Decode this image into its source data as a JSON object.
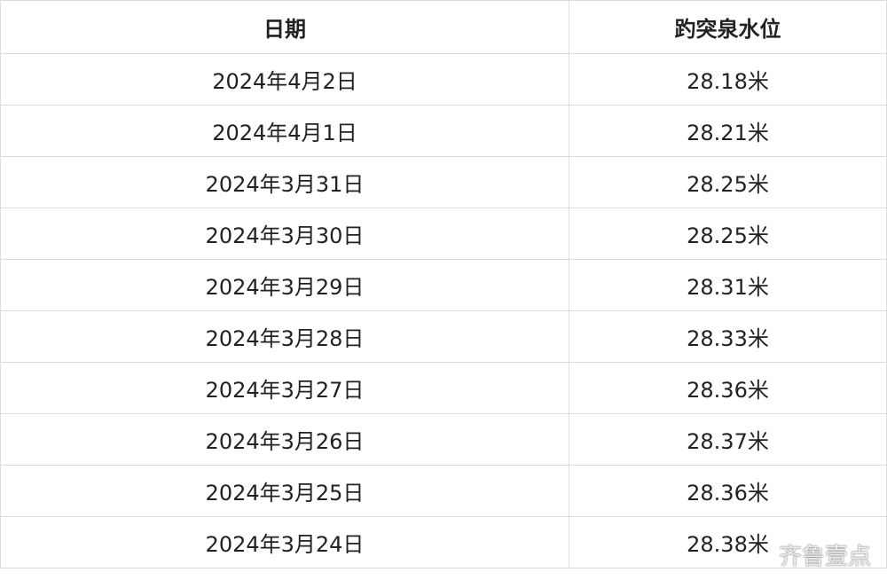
{
  "table": {
    "header": [
      "日期",
      "趵突泉水位"
    ],
    "rows": [
      [
        "2024年4月2日",
        "28.18米"
      ],
      [
        "2024年4月1日",
        "28.21米"
      ],
      [
        "2024年3月31日",
        "28.25米"
      ],
      [
        "2024年3月30日",
        "28.25米"
      ],
      [
        "2024年3月29日",
        "28.31米"
      ],
      [
        "2024年3月28日",
        "28.33米"
      ],
      [
        "2024年3月27日",
        "28.36米"
      ],
      [
        "2024年3月26日",
        "28.37米"
      ],
      [
        "2024年3月25日",
        "28.36米"
      ],
      [
        "2024年3月24日",
        "28.38米"
      ]
    ]
  },
  "watermark": "齐鲁壹点"
}
